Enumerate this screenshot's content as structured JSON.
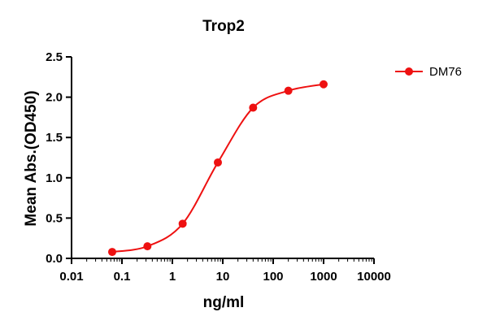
{
  "chart_data": {
    "type": "line",
    "title": "Trop2",
    "xlabel": "ng/ml",
    "ylabel": "Mean Abs.(OD450)",
    "x_scale": "log",
    "xlim": [
      0.01,
      10000
    ],
    "ylim": [
      0,
      2.5
    ],
    "x_ticks": [
      "0.01",
      "0.1",
      "1",
      "10",
      "100",
      "1000",
      "10000"
    ],
    "x_tick_values": [
      0.01,
      0.1,
      1,
      10,
      100,
      1000,
      10000
    ],
    "y_ticks": [
      "0.0",
      "0.5",
      "1.0",
      "1.5",
      "2.0",
      "2.5"
    ],
    "y_tick_values": [
      0,
      0.5,
      1.0,
      1.5,
      2.0,
      2.5
    ],
    "grid": false,
    "legend_position": "top-right",
    "series": [
      {
        "name": "DM76",
        "color": "#ee1111",
        "x": [
          0.064,
          0.32,
          1.6,
          8,
          40,
          200,
          1000
        ],
        "y": [
          0.08,
          0.15,
          0.43,
          1.19,
          1.87,
          2.08,
          2.16
        ],
        "fit": "sigmoidal"
      }
    ]
  }
}
